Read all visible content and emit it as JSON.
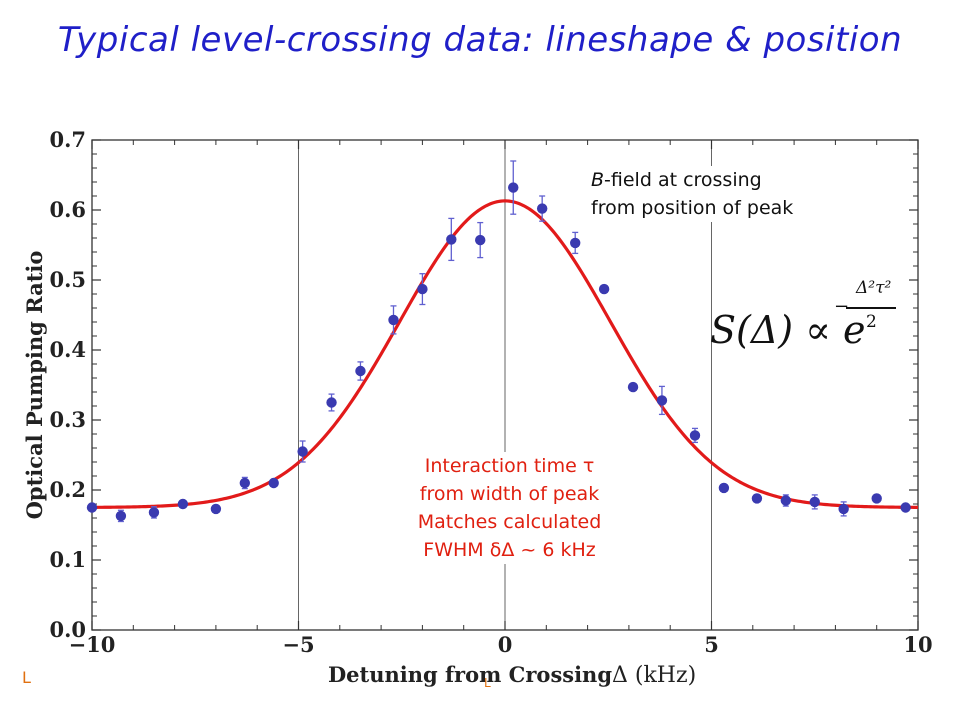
{
  "slide": {
    "title": "Typical level-crossing data: lineshape & position"
  },
  "annotations": {
    "bfield_line1_italic": "B",
    "bfield_line1_rest": "-field at crossing",
    "bfield_line2": "from position of peak",
    "interaction_line1": "Interaction time τ",
    "interaction_line2": "from width of peak",
    "interaction_line3": "Matches calculated",
    "interaction_line4": "FWHM δΔ ~ 6 kHz",
    "formula_main": "S(Δ) ∝ e",
    "formula_exp_num": "Δ²τ²",
    "formula_exp_minus": "−",
    "formula_exp_den": "2"
  },
  "corner_marks": {
    "left": "L",
    "middle": "L"
  },
  "colors": {
    "title": "#1f1fc8",
    "fit_line": "#e21a1a",
    "points": "#3a3ab0",
    "error_bars": "#6060d0",
    "annotation_red": "#e02010"
  },
  "chart_data": {
    "type": "scatter",
    "xlabel": "Detuning from Crossing",
    "xlabel_unit": "Δ (kHz)",
    "ylabel": "Optical Pumping Ratio",
    "xlim": [
      -10,
      10
    ],
    "ylim": [
      0.0,
      0.7
    ],
    "xticks": [
      "−10",
      "−5",
      "0",
      "5",
      "10"
    ],
    "xtick_values": [
      -10,
      -5,
      0,
      5,
      10
    ],
    "yticks": [
      "0.0",
      "0.1",
      "0.2",
      "0.3",
      "0.4",
      "0.5",
      "0.6",
      "0.7"
    ],
    "ytick_values": [
      0.0,
      0.1,
      0.2,
      0.3,
      0.4,
      0.5,
      0.6,
      0.7
    ],
    "vertical_gridlines_at": [
      -5,
      0,
      5
    ],
    "series": [
      {
        "kind": "points",
        "x": [
          -10.0,
          -9.3,
          -8.5,
          -7.8,
          -7.0,
          -6.3,
          -5.6,
          -4.9,
          -4.2,
          -3.5,
          -2.7,
          -2.0,
          -1.3,
          -0.6,
          0.2,
          0.9,
          1.7,
          2.4,
          3.1,
          3.8,
          4.6,
          5.3,
          6.1,
          6.8,
          7.5,
          8.2,
          9.0,
          9.7
        ],
        "y": [
          0.175,
          0.163,
          0.168,
          0.18,
          0.173,
          0.21,
          0.21,
          0.255,
          0.325,
          0.37,
          0.443,
          0.487,
          0.558,
          0.557,
          0.632,
          0.602,
          0.553,
          0.487,
          0.347,
          0.328,
          0.278,
          0.203,
          0.188,
          0.185,
          0.183,
          0.173,
          0.188,
          0.175
        ],
        "err": [
          0.005,
          0.008,
          0.008,
          0.005,
          0.005,
          0.008,
          0.005,
          0.015,
          0.012,
          0.013,
          0.02,
          0.022,
          0.03,
          0.025,
          0.038,
          0.018,
          0.015,
          0.005,
          0.005,
          0.02,
          0.01,
          0.005,
          0.005,
          0.008,
          0.01,
          0.01,
          0.005,
          0.005
        ]
      },
      {
        "kind": "gaussian_fit",
        "baseline": 0.175,
        "amplitude": 0.438,
        "center": 0.0,
        "sigma": 2.55
      }
    ]
  }
}
